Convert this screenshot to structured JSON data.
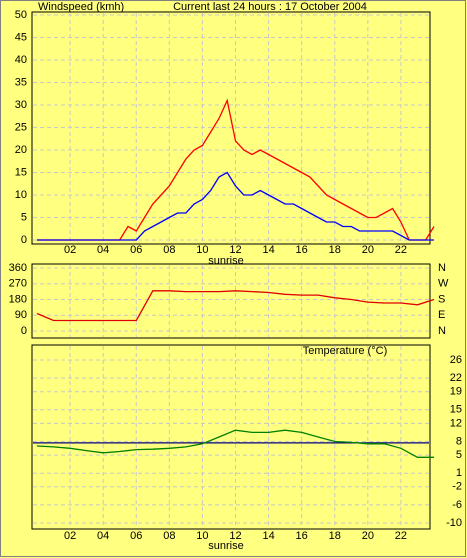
{
  "page_title": "Current last 24 hours : 17 October 2004",
  "chart_data": [
    {
      "type": "line",
      "title": "Windspeed (kmh)",
      "title_color": "#e00000",
      "annotation": "sunrise",
      "x": [
        0,
        0.5,
        1,
        1.5,
        2,
        2.5,
        3,
        3.5,
        4,
        4.5,
        5,
        5.5,
        6,
        6.5,
        7,
        7.5,
        8,
        8.5,
        9,
        9.5,
        10,
        10.5,
        11,
        11.5,
        12,
        12.5,
        13,
        13.5,
        14,
        14.5,
        15,
        15.5,
        16,
        16.5,
        17,
        17.5,
        18,
        18.5,
        19,
        19.5,
        20,
        20.5,
        21,
        21.5,
        22,
        22.5,
        23,
        23.5,
        24
      ],
      "xlim": [
        0,
        24
      ],
      "xticks": [
        {
          "value": 2,
          "label": "02"
        },
        {
          "value": 4,
          "label": "04"
        },
        {
          "value": 6,
          "label": "06"
        },
        {
          "value": 8,
          "label": "08"
        },
        {
          "value": 10,
          "label": "10"
        },
        {
          "value": 12,
          "label": "12"
        },
        {
          "value": 14,
          "label": "14"
        },
        {
          "value": 16,
          "label": "16"
        },
        {
          "value": 18,
          "label": "18"
        },
        {
          "value": 20,
          "label": "20"
        },
        {
          "value": 22,
          "label": "22"
        }
      ],
      "ylim": [
        0,
        50
      ],
      "yticks": [
        0,
        5,
        10,
        15,
        20,
        25,
        30,
        35,
        40,
        45,
        50
      ],
      "grid": true,
      "series": [
        {
          "color": "#ff0000",
          "values": [
            0,
            0,
            0,
            0,
            0,
            0,
            0,
            0,
            0,
            0,
            0,
            3,
            2,
            5,
            8,
            10,
            12,
            15,
            18,
            20,
            21,
            24,
            27,
            31,
            22,
            20,
            19,
            20,
            19,
            18,
            17,
            16,
            15,
            14,
            12,
            10,
            9,
            8,
            7,
            6,
            5,
            5,
            6,
            7,
            4,
            0,
            0,
            0,
            3
          ]
        },
        {
          "color": "#0000ff",
          "values": [
            0,
            0,
            0,
            0,
            0,
            0,
            0,
            0,
            0,
            0,
            0,
            0,
            0,
            2,
            3,
            4,
            5,
            6,
            6,
            8,
            9,
            11,
            14,
            15,
            12,
            10,
            10,
            11,
            10,
            9,
            8,
            8,
            7,
            6,
            5,
            4,
            4,
            3,
            3,
            2,
            2,
            2,
            2,
            2,
            1,
            0,
            0,
            0,
            0
          ]
        }
      ]
    },
    {
      "type": "line",
      "x": [
        0,
        1,
        2,
        3,
        4,
        5,
        6,
        7,
        8,
        9,
        10,
        11,
        12,
        13,
        14,
        15,
        16,
        17,
        18,
        19,
        20,
        21,
        22,
        23,
        24
      ],
      "xlim": [
        0,
        24
      ],
      "ylim": [
        0,
        360
      ],
      "yticks": [
        0,
        90,
        180,
        270,
        360
      ],
      "grid": true,
      "y2lim": [
        0,
        360
      ],
      "y2ticks": [
        {
          "value": 360,
          "label": "N"
        },
        {
          "value": 270,
          "label": "W"
        },
        {
          "value": 180,
          "label": "S"
        },
        {
          "value": 90,
          "label": "E"
        },
        {
          "value": 0,
          "label": "N"
        }
      ],
      "y2color": "#e00000",
      "series": [
        {
          "color": "#e00000",
          "values": [
            100,
            60,
            60,
            60,
            60,
            60,
            60,
            230,
            230,
            225,
            225,
            225,
            230,
            225,
            220,
            210,
            205,
            205,
            190,
            180,
            165,
            160,
            160,
            150,
            180
          ]
        }
      ]
    },
    {
      "type": "line",
      "title": "Temperature (°C)",
      "title_color": "#008000",
      "annotation": "sunrise",
      "x": [
        0,
        1,
        2,
        3,
        4,
        5,
        6,
        7,
        8,
        9,
        10,
        11,
        12,
        13,
        14,
        15,
        16,
        17,
        18,
        19,
        20,
        21,
        22,
        23,
        24
      ],
      "xlim": [
        0,
        24
      ],
      "xticks": [
        {
          "value": 2,
          "label": "02"
        },
        {
          "value": 4,
          "label": "04"
        },
        {
          "value": 6,
          "label": "06"
        },
        {
          "value": 8,
          "label": "08"
        },
        {
          "value": 10,
          "label": "10"
        },
        {
          "value": 12,
          "label": "12"
        },
        {
          "value": 14,
          "label": "14"
        },
        {
          "value": 16,
          "label": "16"
        },
        {
          "value": 18,
          "label": "18"
        },
        {
          "value": 20,
          "label": "20"
        },
        {
          "value": 22,
          "label": "22"
        }
      ],
      "ylim": [
        -10,
        26
      ],
      "yticks": [
        26,
        22,
        19,
        15,
        12,
        8,
        5,
        1,
        -2,
        -6,
        -10
      ],
      "grid": true,
      "yaxis_side": "right",
      "mean": 7.7,
      "mean_color": "#000080",
      "series": [
        {
          "color": "#008000",
          "values": [
            7,
            6.8,
            6.5,
            6,
            5.5,
            5.8,
            6.2,
            6.3,
            6.5,
            6.8,
            7.5,
            9,
            10.5,
            10,
            10,
            10.5,
            10,
            9,
            8,
            7.8,
            7.5,
            7.5,
            6.5,
            4.5,
            4.5
          ]
        }
      ]
    }
  ]
}
